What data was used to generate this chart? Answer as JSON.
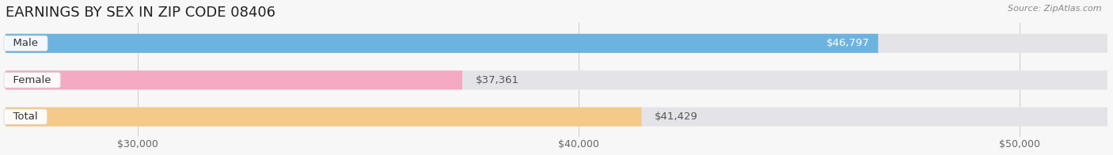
{
  "title": "EARNINGS BY SEX IN ZIP CODE 08406",
  "source": "Source: ZipAtlas.com",
  "categories": [
    "Male",
    "Female",
    "Total"
  ],
  "values": [
    46797,
    37361,
    41429
  ],
  "bar_colors": [
    "#6db3e0",
    "#f4aac3",
    "#f5c98a"
  ],
  "xmin": 27000,
  "xmax": 52000,
  "xticks": [
    30000,
    40000,
    50000
  ],
  "xtick_labels": [
    "$30,000",
    "$40,000",
    "$50,000"
  ],
  "bar_height": 0.52,
  "bar_gap": 0.18,
  "background_color": "#f7f7f7",
  "bar_bg_color": "#e4e4e8",
  "title_fontsize": 13,
  "tick_fontsize": 9,
  "source_fontsize": 8,
  "value_label_inside_color": "#ffffff",
  "value_label_outside_color": "#555555",
  "category_label_fontsize": 9.5,
  "value_label_fontsize": 9.5
}
